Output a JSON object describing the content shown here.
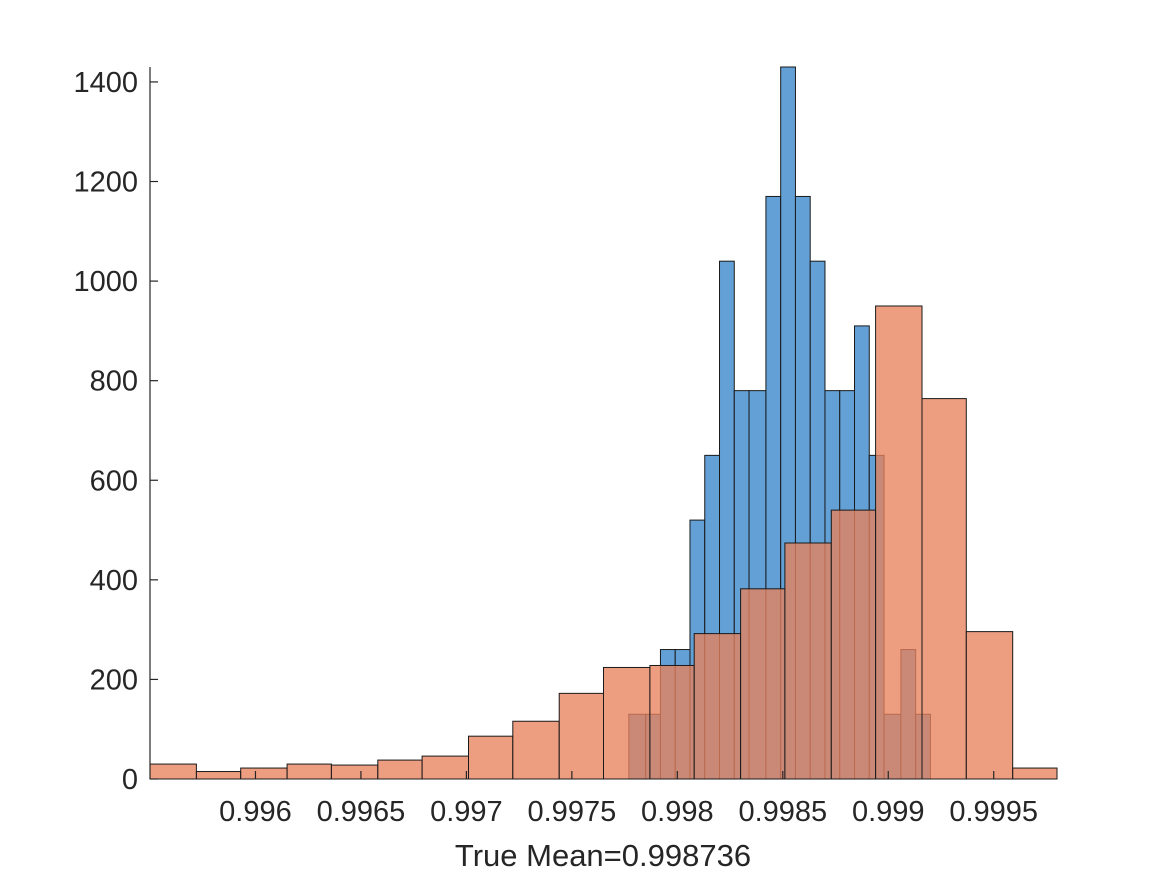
{
  "chart_data": {
    "type": "bar",
    "title": "",
    "xlabel": "True Mean=0.998736",
    "ylabel": "",
    "xlim": [
      0.9955,
      0.9998
    ],
    "ylim": [
      0,
      1430
    ],
    "grid": false,
    "legend": "none",
    "x_ticks": [
      {
        "value": 0.996,
        "label": "0.996"
      },
      {
        "value": 0.9965,
        "label": "0.9965"
      },
      {
        "value": 0.997,
        "label": "0.997"
      },
      {
        "value": 0.9975,
        "label": "0.9975"
      },
      {
        "value": 0.998,
        "label": "0.998"
      },
      {
        "value": 0.9985,
        "label": "0.9985"
      },
      {
        "value": 0.999,
        "label": "0.999"
      },
      {
        "value": 0.9995,
        "label": "0.9995"
      }
    ],
    "y_ticks": [
      {
        "value": 0,
        "label": "0"
      },
      {
        "value": 200,
        "label": "200"
      },
      {
        "value": 400,
        "label": "400"
      },
      {
        "value": 600,
        "label": "600"
      },
      {
        "value": 800,
        "label": "800"
      },
      {
        "value": 1000,
        "label": "1000"
      },
      {
        "value": 1200,
        "label": "1200"
      },
      {
        "value": 1400,
        "label": "1400"
      }
    ],
    "series": [
      {
        "color": "#5a9bd4",
        "opacity": 0.95,
        "bins": [
          [
            0.99777,
            0.99785,
            130
          ],
          [
            0.99785,
            0.99792,
            130
          ],
          [
            0.99792,
            0.99799,
            260
          ],
          [
            0.99799,
            0.99806,
            260
          ],
          [
            0.99806,
            0.99813,
            520
          ],
          [
            0.99813,
            0.9982,
            650
          ],
          [
            0.9982,
            0.99827,
            1040
          ],
          [
            0.99827,
            0.99834,
            780
          ],
          [
            0.99834,
            0.99842,
            780
          ],
          [
            0.99842,
            0.99849,
            1170
          ],
          [
            0.99849,
            0.99856,
            1430
          ],
          [
            0.99856,
            0.99863,
            1170
          ],
          [
            0.99863,
            0.9987,
            1040
          ],
          [
            0.9987,
            0.99877,
            780
          ],
          [
            0.99877,
            0.99884,
            780
          ],
          [
            0.99884,
            0.99891,
            910
          ],
          [
            0.99891,
            0.99898,
            650
          ],
          [
            0.99898,
            0.99906,
            130
          ],
          [
            0.99906,
            0.99913,
            260
          ],
          [
            0.99913,
            0.9992,
            130
          ]
        ]
      },
      {
        "color": "#e8825c",
        "opacity": 0.78,
        "bins": [
          [
            0.9955,
            0.99572,
            30
          ],
          [
            0.99572,
            0.99593,
            15
          ],
          [
            0.99593,
            0.99615,
            22
          ],
          [
            0.99615,
            0.99636,
            30
          ],
          [
            0.99636,
            0.99658,
            28
          ],
          [
            0.99658,
            0.99679,
            38
          ],
          [
            0.99679,
            0.99701,
            46
          ],
          [
            0.99701,
            0.99722,
            86
          ],
          [
            0.99722,
            0.99744,
            116
          ],
          [
            0.99744,
            0.99765,
            172
          ],
          [
            0.99765,
            0.99787,
            224
          ],
          [
            0.99787,
            0.99808,
            228
          ],
          [
            0.99808,
            0.9983,
            292
          ],
          [
            0.9983,
            0.99851,
            382
          ],
          [
            0.99851,
            0.99873,
            474
          ],
          [
            0.99873,
            0.99894,
            540
          ],
          [
            0.99894,
            0.99916,
            950
          ],
          [
            0.99916,
            0.99937,
            764
          ],
          [
            0.99937,
            0.99959,
            296
          ],
          [
            0.99959,
            0.9998,
            22
          ]
        ]
      }
    ]
  }
}
